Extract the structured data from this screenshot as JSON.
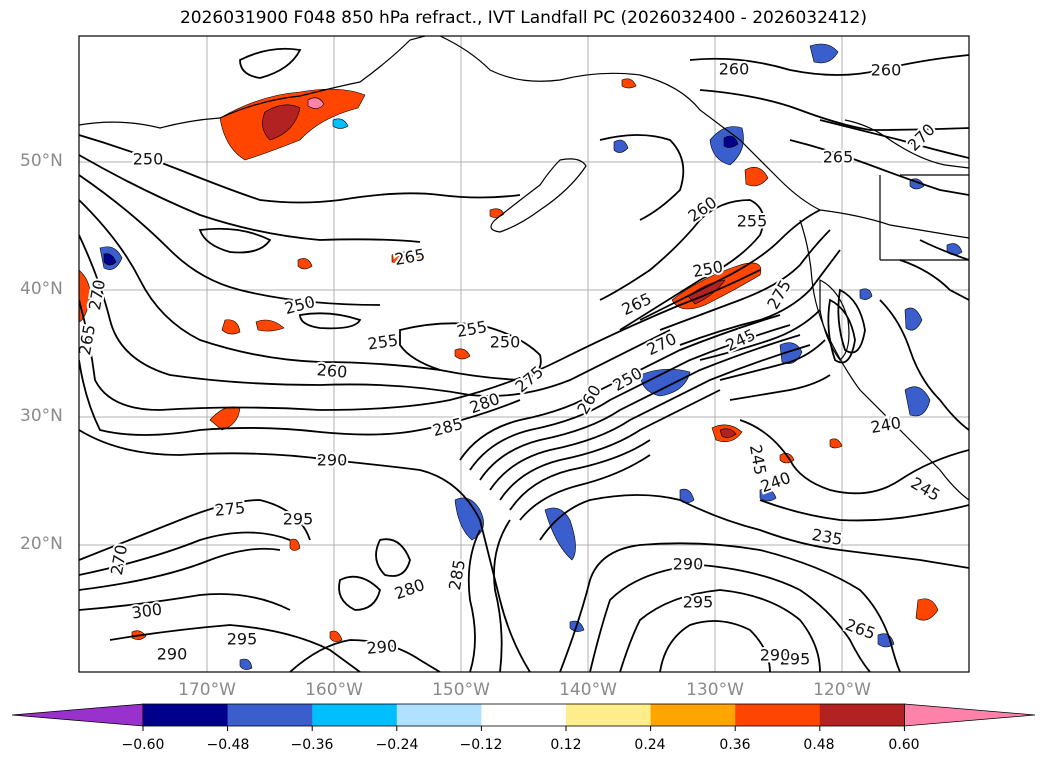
{
  "title": "2026031900 F048 850 hPa refract., IVT Landfall PC (2026032400 - 2026032412)",
  "lat_labels": [
    "50°N",
    "40°N",
    "30°N",
    "20°N"
  ],
  "lon_labels": [
    "170°W",
    "160°W",
    "150°W",
    "140°W",
    "130°W",
    "120°W"
  ],
  "colorbar": {
    "ticks": [
      "−0.60",
      "−0.48",
      "−0.36",
      "−0.24",
      "−0.12",
      "0.12",
      "0.24",
      "0.36",
      "0.48",
      "0.60"
    ],
    "colors": [
      "#9932cc",
      "#00008b",
      "#3a5fcd",
      "#00bfff",
      "#b0e2ff",
      "#ffffff",
      "#ffec8b",
      "#ffa500",
      "#ff4500",
      "#b22222",
      "#ff82ab"
    ],
    "extend": "both"
  },
  "contour_labels": [
    {
      "text": "250"
    },
    {
      "text": "265"
    },
    {
      "text": "250"
    },
    {
      "text": "255"
    },
    {
      "text": "255"
    },
    {
      "text": "250"
    },
    {
      "text": "260"
    },
    {
      "text": "275"
    },
    {
      "text": "280"
    },
    {
      "text": "285"
    },
    {
      "text": "290"
    },
    {
      "text": "275"
    },
    {
      "text": "300"
    },
    {
      "text": "295"
    },
    {
      "text": "290"
    },
    {
      "text": "280"
    },
    {
      "text": "285"
    },
    {
      "text": "290"
    },
    {
      "text": "295"
    },
    {
      "text": "290"
    },
    {
      "text": "295"
    },
    {
      "text": "290"
    },
    {
      "text": "295"
    },
    {
      "text": "260"
    },
    {
      "text": "255"
    },
    {
      "text": "250"
    },
    {
      "text": "265"
    },
    {
      "text": "270"
    },
    {
      "text": "260"
    },
    {
      "text": "250"
    },
    {
      "text": "245"
    },
    {
      "text": "245"
    },
    {
      "text": "240"
    },
    {
      "text": "235"
    },
    {
      "text": "240"
    },
    {
      "text": "245"
    },
    {
      "text": "260"
    },
    {
      "text": "260"
    },
    {
      "text": "265"
    },
    {
      "text": "270"
    },
    {
      "text": "265"
    },
    {
      "text": "275"
    },
    {
      "text": "270"
    },
    {
      "text": "270"
    },
    {
      "text": "265"
    }
  ]
}
